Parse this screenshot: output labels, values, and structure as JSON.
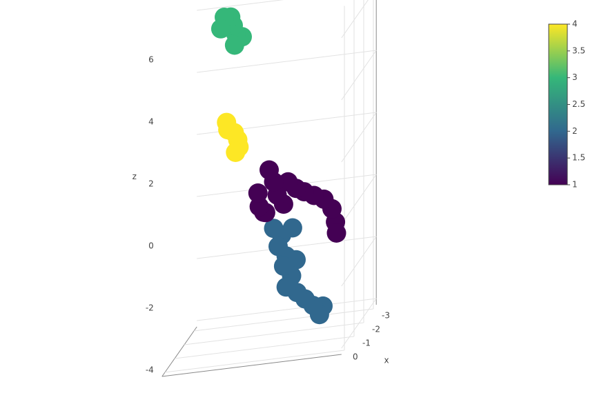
{
  "chart_data": {
    "type": "scatter3d",
    "x": [
      -1.5,
      -1.4,
      -1.6,
      -1.5,
      -1.3,
      -1.5,
      -1.7,
      -1.4,
      -1.5,
      -1.4,
      -1.6,
      -1.5,
      -1.4,
      -1.5,
      -1.5,
      -1.4,
      -1.6,
      -1.5,
      -1.5,
      -1.4,
      -1.6,
      -1.5,
      -1.4,
      -1.5,
      -1.6,
      -1.5,
      -1.4,
      -1.5,
      -1.6,
      -1.4,
      -1.5,
      -1.4,
      -1.6,
      -1.5,
      -1.4,
      -1.6,
      -1.5,
      -1.4,
      -1.6,
      -1.5,
      -1.4,
      -1.5,
      -1.6,
      -1.5
    ],
    "y": [
      -1.0,
      -0.95,
      -1.1,
      -0.8,
      -0.7,
      -0.6,
      -0.9,
      -0.75,
      -0.95,
      -0.9,
      -0.8,
      -0.7,
      -0.65,
      -0.75,
      -0.25,
      -0.2,
      -0.1,
      0.0,
      0.1,
      0.2,
      0.4,
      0.6,
      0.8,
      1.0,
      1.2,
      1.4,
      1.5,
      1.5,
      0.3,
      -0.1,
      0.1,
      0.3,
      0.5,
      0.2,
      0.4,
      0.3,
      0.5,
      0.4,
      0.6,
      0.8,
      1.0,
      1.2,
      1.1,
      0.6
    ],
    "z": [
      6.4,
      6.2,
      6.0,
      6.1,
      5.9,
      5.7,
      6.3,
      5.5,
      3.0,
      2.8,
      2.6,
      2.4,
      2.2,
      2.0,
      0.6,
      0.2,
      -0.1,
      1.3,
      0.9,
      0.5,
      0.8,
      0.6,
      0.5,
      0.3,
      0.1,
      -0.2,
      -0.6,
      -1.0,
      0.1,
      0.0,
      -0.6,
      -0.8,
      -0.7,
      -1.2,
      -1.5,
      -1.9,
      -2.2,
      -2.5,
      -2.8,
      -3.0,
      -3.2,
      -3.3,
      -3.6,
      -1.7
    ],
    "color": [
      3,
      3,
      3,
      3,
      3,
      3,
      3,
      3,
      4,
      4,
      4,
      4,
      4,
      4,
      1,
      1,
      1,
      1,
      1,
      1,
      1,
      1,
      1,
      1,
      1,
      1,
      1,
      1,
      1,
      1,
      2,
      2,
      2,
      2,
      2,
      2,
      2,
      2,
      2,
      2,
      2,
      2,
      2,
      2
    ],
    "colorscale": [
      "#440154",
      "#31688e",
      "#35b779",
      "#fde725"
    ],
    "clim": [
      1,
      4
    ],
    "colorbar_ticks": [
      1,
      1.5,
      2,
      2.5,
      3,
      3.5,
      4
    ],
    "xlim": [
      -3.3,
      0.3
    ],
    "ylim": [
      -2,
      2
    ],
    "zlim": [
      -4.2,
      6.9
    ],
    "xticks": [
      0,
      -1,
      -2,
      -3
    ],
    "zticks": [
      -4,
      -2,
      0,
      2,
      4,
      6
    ],
    "xlabel": "x",
    "zlabel": "z",
    "grid": true
  }
}
